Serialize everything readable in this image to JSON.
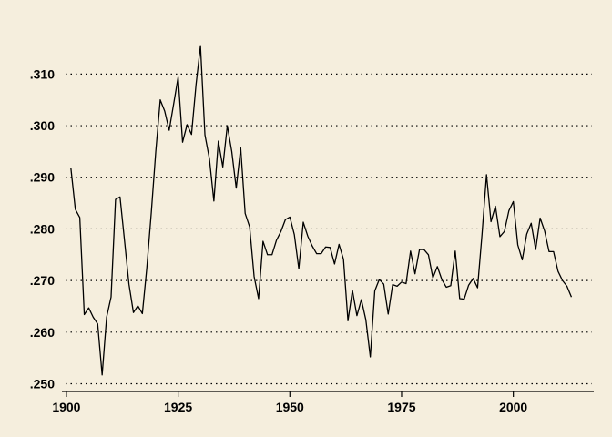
{
  "chart_data": {
    "type": "line",
    "title": "",
    "xlabel": "",
    "ylabel": "",
    "xlim": [
      1899,
      2018
    ],
    "ylim": [
      0.2485,
      0.318
    ],
    "grid": true,
    "colors": {
      "background": "#f5eedd",
      "line": "#000000",
      "grid": "#000000"
    },
    "x_ticks": [
      {
        "value": 1900,
        "label": "1900"
      },
      {
        "value": 1925,
        "label": "1925"
      },
      {
        "value": 1950,
        "label": "1950"
      },
      {
        "value": 1975,
        "label": "1975"
      },
      {
        "value": 2000,
        "label": "2000"
      }
    ],
    "y_ticks": [
      {
        "value": 0.25,
        "label": ".250"
      },
      {
        "value": 0.26,
        "label": ".260"
      },
      {
        "value": 0.27,
        "label": ".270"
      },
      {
        "value": 0.28,
        "label": ".280"
      },
      {
        "value": 0.29,
        "label": ".290"
      },
      {
        "value": 0.3,
        "label": ".300"
      },
      {
        "value": 0.31,
        "label": ".310"
      }
    ],
    "series": [
      {
        "x": [
          1901,
          1902,
          1903,
          1904,
          1905,
          1906,
          1907,
          1908,
          1909,
          1910,
          1911,
          1912,
          1913,
          1914,
          1915,
          1916,
          1917,
          1918,
          1919,
          1920,
          1921,
          1922,
          1923,
          1924,
          1925,
          1926,
          1927,
          1928,
          1929,
          1930,
          1931,
          1932,
          1933,
          1934,
          1935,
          1936,
          1937,
          1938,
          1939,
          1940,
          1941,
          1942,
          1943,
          1944,
          1945,
          1946,
          1947,
          1948,
          1949,
          1950,
          1951,
          1952,
          1953,
          1954,
          1955,
          1956,
          1957,
          1958,
          1959,
          1960,
          1961,
          1962,
          1963,
          1964,
          1965,
          1966,
          1967,
          1968,
          1969,
          1970,
          1971,
          1972,
          1973,
          1974,
          1975,
          1976,
          1977,
          1978,
          1979,
          1980,
          1981,
          1982,
          1983,
          1984,
          1985,
          1986,
          1987,
          1988,
          1989,
          1990,
          1991,
          1992,
          1993,
          1994,
          1995,
          1996,
          1997,
          1998,
          1999,
          2000,
          2001,
          2002,
          2003,
          2004,
          2005,
          2006,
          2007,
          2008,
          2009,
          2010,
          2011,
          2012,
          2013
        ],
        "values": [
          0.2918,
          0.2838,
          0.2822,
          0.2634,
          0.2647,
          0.2629,
          0.2616,
          0.2517,
          0.2629,
          0.2668,
          0.2857,
          0.2862,
          0.2778,
          0.2693,
          0.2638,
          0.2651,
          0.2636,
          0.2725,
          0.2832,
          0.295,
          0.305,
          0.3028,
          0.2991,
          0.3042,
          0.3094,
          0.2968,
          0.3002,
          0.2983,
          0.3079,
          0.3155,
          0.2982,
          0.2936,
          0.2854,
          0.297,
          0.292,
          0.3,
          0.295,
          0.2879,
          0.2957,
          0.283,
          0.2804,
          0.2708,
          0.2665,
          0.2776,
          0.275,
          0.275,
          0.2778,
          0.2795,
          0.2818,
          0.2823,
          0.2789,
          0.2723,
          0.2813,
          0.2786,
          0.2767,
          0.2752,
          0.2752,
          0.2765,
          0.2764,
          0.2732,
          0.277,
          0.2741,
          0.2622,
          0.2681,
          0.2632,
          0.2663,
          0.2624,
          0.2552,
          0.268,
          0.2702,
          0.2693,
          0.2635,
          0.2692,
          0.2689,
          0.2697,
          0.2694,
          0.2757,
          0.2713,
          0.276,
          0.276,
          0.275,
          0.2705,
          0.2727,
          0.2702,
          0.2687,
          0.269,
          0.2757,
          0.2665,
          0.2664,
          0.2691,
          0.2704,
          0.2686,
          0.279,
          0.2905,
          0.2814,
          0.2844,
          0.2785,
          0.2795,
          0.2835,
          0.2853,
          0.2769,
          0.274,
          0.279,
          0.2811,
          0.276,
          0.2821,
          0.2796,
          0.2756,
          0.2756,
          0.2718,
          0.27,
          0.2689,
          0.2668
        ]
      }
    ]
  }
}
